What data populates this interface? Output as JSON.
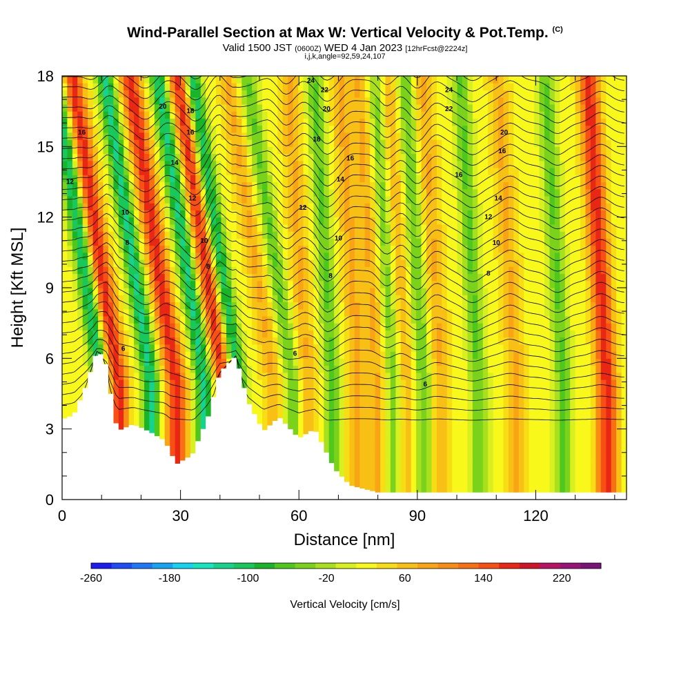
{
  "header": {
    "title": "Wind-Parallel Section at Max W: Vertical Velocity & Pot.Temp.",
    "copyright": "(C)",
    "valid_prefix": "Valid 1500 JST",
    "valid_utc": "(0600Z)",
    "valid_date": "WED 4 Jan 2023",
    "forecast": "[12hrFcst@2224z]",
    "grid_info": "i,j,k,angle=92,59,24,107"
  },
  "chart_data": {
    "type": "heatmap",
    "title": "Wind-Parallel Section at Max W: Vertical Velocity & Pot.Temp.",
    "xlabel": "Distance [nm]",
    "ylabel": "Height [Kft MSL]",
    "xlim": [
      0,
      143
    ],
    "ylim": [
      0,
      18
    ],
    "xticks": [
      0,
      30,
      60,
      90,
      120
    ],
    "yticks": [
      0,
      3,
      6,
      9,
      12,
      15,
      18
    ],
    "colorbar": {
      "label": "Vertical Velocity [cm/s]",
      "min": -260,
      "max": 260,
      "tick_values": [
        -260,
        -180,
        -100,
        -20,
        60,
        140,
        220
      ],
      "tick_labels": [
        "-260",
        "-180",
        "-100",
        "-20",
        "60",
        "140",
        "220"
      ],
      "colors": [
        "#1c1cf0",
        "#1e4cf5",
        "#1e78f5",
        "#15a4f2",
        "#14d2f0",
        "#16e6c0",
        "#17d28c",
        "#19c85a",
        "#1ab42a",
        "#4ec81c",
        "#7ad21a",
        "#a8e01e",
        "#d8f01f",
        "#f8f81a",
        "#f8dc14",
        "#f8c014",
        "#f8a414",
        "#f88c14",
        "#f87014",
        "#f85014",
        "#e82814",
        "#d01428",
        "#b81464",
        "#981478",
        "#781478"
      ]
    },
    "updraft_bands_x": [
      14.2,
      28.8,
      41.0,
      53.5,
      62.0,
      75.0,
      80.0,
      87.0,
      96.0,
      115.0,
      138.0
    ],
    "downdraft_bands_x": [
      10.0,
      22.5,
      36.0,
      44.5,
      58.5,
      68.5,
      84.0,
      91.5,
      105.5,
      127.0
    ],
    "terrain": [
      {
        "x": 0,
        "kft": 3.4
      },
      {
        "x": 3,
        "kft": 3.6
      },
      {
        "x": 6,
        "kft": 4.8
      },
      {
        "x": 9,
        "kft": 6.4
      },
      {
        "x": 11,
        "kft": 5.8
      },
      {
        "x": 14,
        "kft": 2.9
      },
      {
        "x": 18,
        "kft": 3.2
      },
      {
        "x": 22,
        "kft": 2.9
      },
      {
        "x": 26,
        "kft": 2.5
      },
      {
        "x": 29,
        "kft": 1.5
      },
      {
        "x": 33,
        "kft": 1.9
      },
      {
        "x": 37,
        "kft": 3.5
      },
      {
        "x": 40,
        "kft": 5.4
      },
      {
        "x": 44,
        "kft": 6.1
      },
      {
        "x": 47,
        "kft": 4.2
      },
      {
        "x": 51,
        "kft": 2.9
      },
      {
        "x": 55,
        "kft": 3.5
      },
      {
        "x": 60,
        "kft": 2.6
      },
      {
        "x": 64,
        "kft": 3.0
      },
      {
        "x": 69,
        "kft": 1.3
      },
      {
        "x": 73,
        "kft": 0.6
      },
      {
        "x": 80,
        "kft": 0.3
      },
      {
        "x": 143,
        "kft": 0.3
      }
    ],
    "theta_contour_labels": [
      {
        "text": "6",
        "x": 15.5,
        "y": 6.4
      },
      {
        "text": "6",
        "x": 59,
        "y": 6.2
      },
      {
        "text": "6",
        "x": 92,
        "y": 4.9
      },
      {
        "text": "8",
        "x": 16.5,
        "y": 10.9
      },
      {
        "text": "8",
        "x": 37,
        "y": 9.9
      },
      {
        "text": "8",
        "x": 68,
        "y": 9.5
      },
      {
        "text": "8",
        "x": 108,
        "y": 9.6
      },
      {
        "text": "10",
        "x": 16,
        "y": 12.2
      },
      {
        "text": "10",
        "x": 36,
        "y": 11.0
      },
      {
        "text": "10",
        "x": 70,
        "y": 11.1
      },
      {
        "text": "10",
        "x": 110,
        "y": 10.9
      },
      {
        "text": "12",
        "x": 2,
        "y": 13.5
      },
      {
        "text": "12",
        "x": 33,
        "y": 12.8
      },
      {
        "text": "12",
        "x": 61,
        "y": 12.4
      },
      {
        "text": "12",
        "x": 108,
        "y": 12.0
      },
      {
        "text": "14",
        "x": 28.5,
        "y": 14.3
      },
      {
        "text": "14",
        "x": 70.5,
        "y": 13.6
      },
      {
        "text": "14",
        "x": 110.5,
        "y": 12.8
      },
      {
        "text": "16",
        "x": 5,
        "y": 15.6
      },
      {
        "text": "16",
        "x": 32.5,
        "y": 15.6
      },
      {
        "text": "16",
        "x": 73,
        "y": 14.5
      },
      {
        "text": "16",
        "x": 100.5,
        "y": 13.8
      },
      {
        "text": "16",
        "x": 111.5,
        "y": 14.8
      },
      {
        "text": "18",
        "x": 32.5,
        "y": 16.5
      },
      {
        "text": "18",
        "x": 64.5,
        "y": 15.3
      },
      {
        "text": "20",
        "x": 25.5,
        "y": 16.7
      },
      {
        "text": "20",
        "x": 67,
        "y": 16.6
      },
      {
        "text": "20",
        "x": 112,
        "y": 15.6
      },
      {
        "text": "22",
        "x": 66.5,
        "y": 17.4
      },
      {
        "text": "22",
        "x": 98,
        "y": 16.6
      },
      {
        "text": "24",
        "x": 63,
        "y": 17.8
      },
      {
        "text": "24",
        "x": 98,
        "y": 17.4
      }
    ],
    "grid": false,
    "legend": "bottom"
  }
}
